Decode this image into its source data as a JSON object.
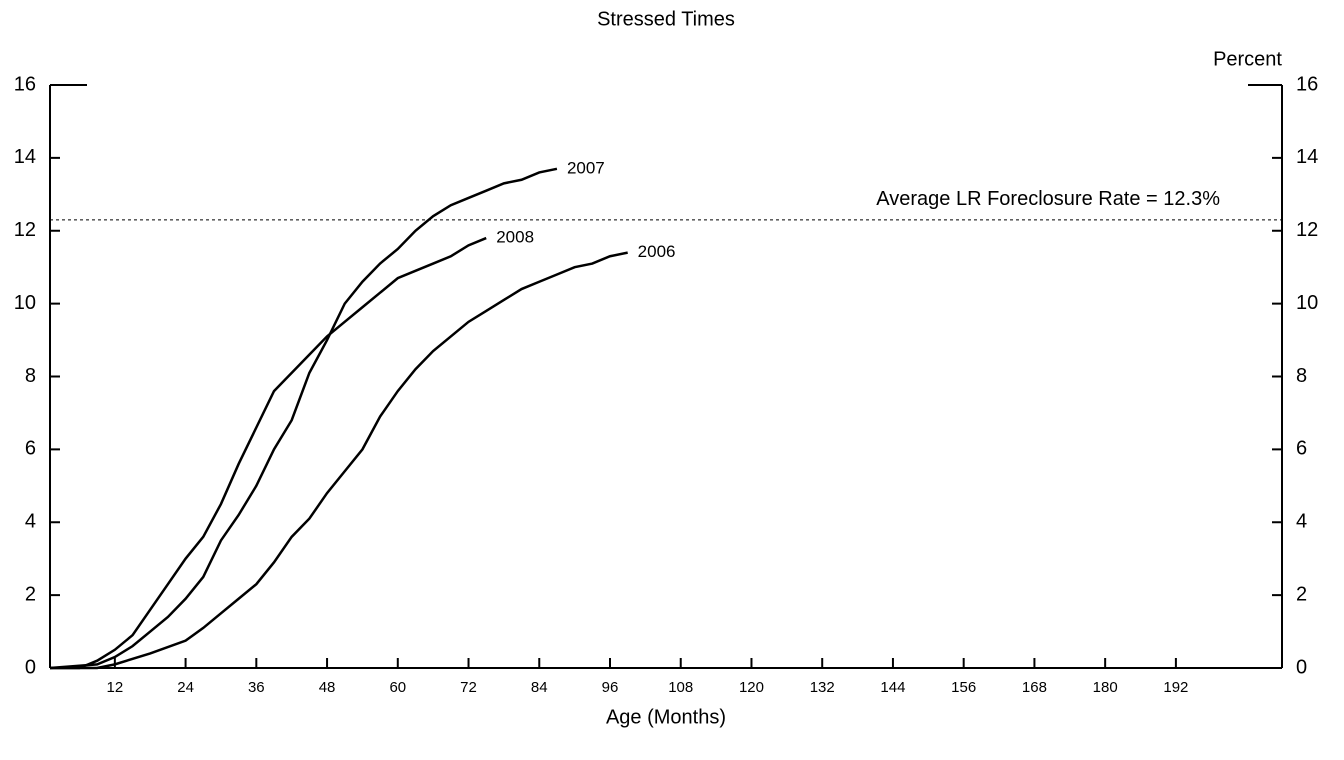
{
  "chart_data": {
    "type": "line",
    "title": "Stressed Times",
    "x_label": "Age (Months)",
    "y2_label": "Percent",
    "xlim": [
      1,
      210
    ],
    "xticks": [
      12,
      24,
      36,
      48,
      60,
      72,
      84,
      96,
      108,
      120,
      132,
      144,
      156,
      168,
      180,
      192
    ],
    "ylim": [
      0,
      16
    ],
    "yticks": [
      0,
      2,
      4,
      6,
      8,
      10,
      12,
      14,
      16
    ],
    "y2lim": [
      0,
      16
    ],
    "y2ticks": [
      0,
      2,
      4,
      6,
      8,
      10,
      12,
      14,
      16
    ],
    "reference_line": {
      "value": 12.3,
      "label": "Average LR Foreclosure Rate = 12.3%"
    },
    "series": [
      {
        "name": "2007",
        "color": "#000000",
        "x": [
          1,
          9,
          12,
          15,
          18,
          21,
          24,
          27,
          30,
          33,
          36,
          39,
          42,
          45,
          48,
          51,
          54,
          57,
          60,
          63,
          66,
          69,
          72,
          75,
          78,
          81,
          84,
          87
        ],
        "values": [
          0,
          0.1,
          0.3,
          0.6,
          1.0,
          1.4,
          1.9,
          2.5,
          3.5,
          4.2,
          5.0,
          6.0,
          6.8,
          8.1,
          9.0,
          10.0,
          10.6,
          11.1,
          11.5,
          12.0,
          12.4,
          12.7,
          12.9,
          13.1,
          13.3,
          13.4,
          13.6,
          13.7
        ]
      },
      {
        "name": "2008",
        "color": "#000000",
        "x": [
          1,
          6,
          9,
          12,
          15,
          18,
          21,
          24,
          27,
          30,
          33,
          36,
          39,
          42,
          45,
          48,
          51,
          54,
          57,
          60,
          63,
          66,
          69,
          72,
          75
        ],
        "values": [
          0,
          0,
          0.2,
          0.5,
          0.9,
          1.6,
          2.3,
          3.0,
          3.6,
          4.5,
          5.6,
          6.6,
          7.6,
          8.1,
          8.6,
          9.1,
          9.5,
          9.9,
          10.3,
          10.7,
          10.9,
          11.1,
          11.3,
          11.6,
          11.8
        ]
      },
      {
        "name": "2006",
        "color": "#000000",
        "x": [
          1,
          9,
          12,
          18,
          24,
          27,
          30,
          33,
          36,
          39,
          42,
          45,
          48,
          51,
          54,
          57,
          60,
          63,
          66,
          69,
          72,
          75,
          78,
          81,
          84,
          87,
          90,
          93,
          96,
          99
        ],
        "values": [
          0,
          0,
          0.1,
          0.4,
          0.75,
          1.1,
          1.5,
          1.9,
          2.3,
          2.9,
          3.6,
          4.1,
          4.8,
          5.4,
          6.0,
          6.9,
          7.6,
          8.2,
          8.7,
          9.1,
          9.5,
          9.8,
          10.1,
          10.4,
          10.6,
          10.8,
          11.0,
          11.1,
          11.3,
          11.4
        ]
      }
    ]
  }
}
